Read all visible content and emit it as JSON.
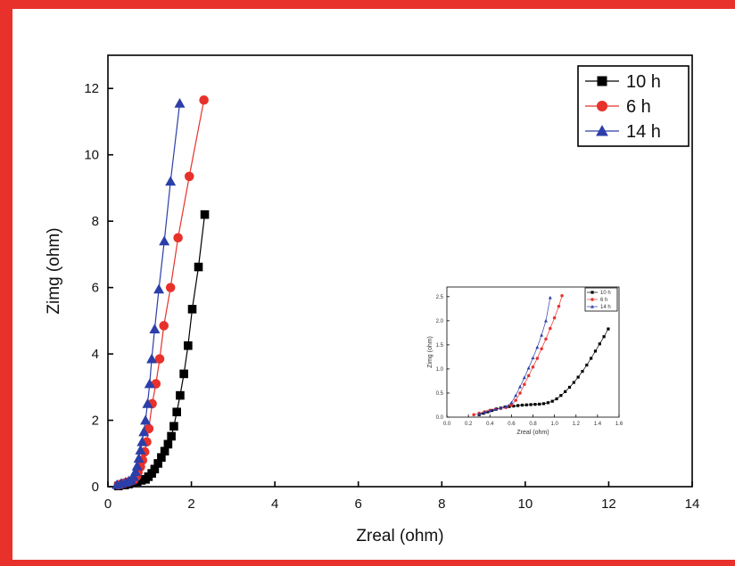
{
  "chart_data": [
    {
      "type": "line",
      "title": "",
      "xlabel": "Zreal (ohm)",
      "ylabel": "Zimg (ohm)",
      "xlim": [
        0,
        14
      ],
      "ylim": [
        0,
        13
      ],
      "xticks": [
        0,
        2,
        4,
        6,
        8,
        10,
        12,
        14
      ],
      "yticks": [
        0,
        2,
        4,
        6,
        8,
        10,
        12
      ],
      "grid": false,
      "legend_position": "top-right",
      "series": [
        {
          "name": "10 h",
          "color": "#000000",
          "marker": "square",
          "x": [
            0.25,
            0.4,
            0.5,
            0.6,
            0.7,
            0.8,
            0.9,
            0.97,
            1.05,
            1.12,
            1.2,
            1.28,
            1.36,
            1.44,
            1.52,
            1.58,
            1.65,
            1.73,
            1.82,
            1.92,
            2.02,
            2.17,
            2.32
          ],
          "y": [
            0.02,
            0.05,
            0.08,
            0.12,
            0.15,
            0.19,
            0.22,
            0.3,
            0.4,
            0.53,
            0.7,
            0.88,
            1.07,
            1.28,
            1.52,
            1.82,
            2.25,
            2.75,
            3.4,
            4.25,
            5.35,
            6.62,
            8.2
          ]
        },
        {
          "name": "6 h",
          "color": "#e8312b",
          "marker": "circle",
          "x": [
            0.25,
            0.32,
            0.4,
            0.48,
            0.55,
            0.62,
            0.68,
            0.72,
            0.78,
            0.83,
            0.88,
            0.93,
            0.98,
            1.06,
            1.15,
            1.24,
            1.34,
            1.5,
            1.68,
            1.95,
            2.3
          ],
          "y": [
            0.05,
            0.08,
            0.11,
            0.14,
            0.17,
            0.2,
            0.3,
            0.43,
            0.6,
            0.8,
            1.05,
            1.35,
            1.75,
            2.5,
            3.1,
            3.85,
            4.85,
            6.0,
            7.5,
            9.35,
            11.65
          ]
        },
        {
          "name": "14 h",
          "color": "#2c3ea8",
          "marker": "triangle",
          "x": [
            0.22,
            0.32,
            0.42,
            0.5,
            0.56,
            0.62,
            0.66,
            0.7,
            0.74,
            0.78,
            0.82,
            0.86,
            0.9,
            0.95,
            1.0,
            1.05,
            1.12,
            1.22,
            1.35,
            1.5,
            1.72
          ],
          "y": [
            0.06,
            0.1,
            0.13,
            0.17,
            0.2,
            0.3,
            0.45,
            0.62,
            0.85,
            1.1,
            1.35,
            1.65,
            2.0,
            2.5,
            3.1,
            3.85,
            4.75,
            5.95,
            7.4,
            9.2,
            11.55
          ]
        }
      ]
    },
    {
      "type": "line",
      "title": "",
      "xlabel": "Zreal (ohm)",
      "ylabel": "Zimg (ohm)",
      "xlim": [
        0,
        1.6
      ],
      "ylim": [
        0,
        2.7
      ],
      "xticks": [
        0.0,
        0.2,
        0.4,
        0.6,
        0.8,
        1.0,
        1.2,
        1.4,
        1.6
      ],
      "yticks": [
        0.0,
        0.5,
        1.0,
        1.5,
        2.0,
        2.5
      ],
      "xtick_labels": [
        "0.0",
        "0.2",
        "0.4",
        "0.6",
        "0.8",
        "1.0",
        "1.2",
        "1.4",
        "1.6"
      ],
      "ytick_labels": [
        "0.0",
        "0.5",
        "1.0",
        "1.5",
        "2.0",
        "2.5"
      ],
      "grid": false,
      "legend_position": "top-right",
      "series": [
        {
          "name": "10 h",
          "color": "#000000",
          "marker": "square",
          "x": [
            0.3,
            0.34,
            0.38,
            0.42,
            0.46,
            0.5,
            0.54,
            0.58,
            0.62,
            0.66,
            0.7,
            0.74,
            0.78,
            0.82,
            0.86,
            0.9,
            0.94,
            0.98,
            1.02,
            1.06,
            1.1,
            1.14,
            1.18,
            1.22,
            1.26,
            1.3,
            1.34,
            1.38,
            1.42,
            1.46,
            1.5
          ],
          "y": [
            0.05,
            0.08,
            0.11,
            0.14,
            0.17,
            0.19,
            0.21,
            0.22,
            0.23,
            0.24,
            0.25,
            0.255,
            0.26,
            0.265,
            0.27,
            0.28,
            0.3,
            0.33,
            0.38,
            0.45,
            0.53,
            0.62,
            0.72,
            0.83,
            0.95,
            1.08,
            1.22,
            1.37,
            1.52,
            1.67,
            1.83
          ]
        },
        {
          "name": "6 h",
          "color": "#e8312b",
          "marker": "circle",
          "x": [
            0.25,
            0.3,
            0.35,
            0.4,
            0.45,
            0.5,
            0.55,
            0.6,
            0.64,
            0.68,
            0.72,
            0.76,
            0.8,
            0.84,
            0.88,
            0.92,
            0.96,
            1.0,
            1.04,
            1.07
          ],
          "y": [
            0.05,
            0.08,
            0.11,
            0.14,
            0.16,
            0.18,
            0.2,
            0.25,
            0.35,
            0.5,
            0.68,
            0.86,
            1.04,
            1.22,
            1.42,
            1.62,
            1.84,
            2.06,
            2.3,
            2.52
          ]
        },
        {
          "name": "14 h",
          "color": "#2c3ea8",
          "marker": "triangle",
          "x": [
            0.3,
            0.35,
            0.4,
            0.45,
            0.5,
            0.55,
            0.6,
            0.64,
            0.68,
            0.72,
            0.76,
            0.8,
            0.84,
            0.88,
            0.92,
            0.96
          ],
          "y": [
            0.07,
            0.1,
            0.13,
            0.16,
            0.19,
            0.22,
            0.3,
            0.45,
            0.63,
            0.82,
            1.02,
            1.23,
            1.45,
            1.7,
            2.0,
            2.48
          ]
        }
      ]
    }
  ]
}
